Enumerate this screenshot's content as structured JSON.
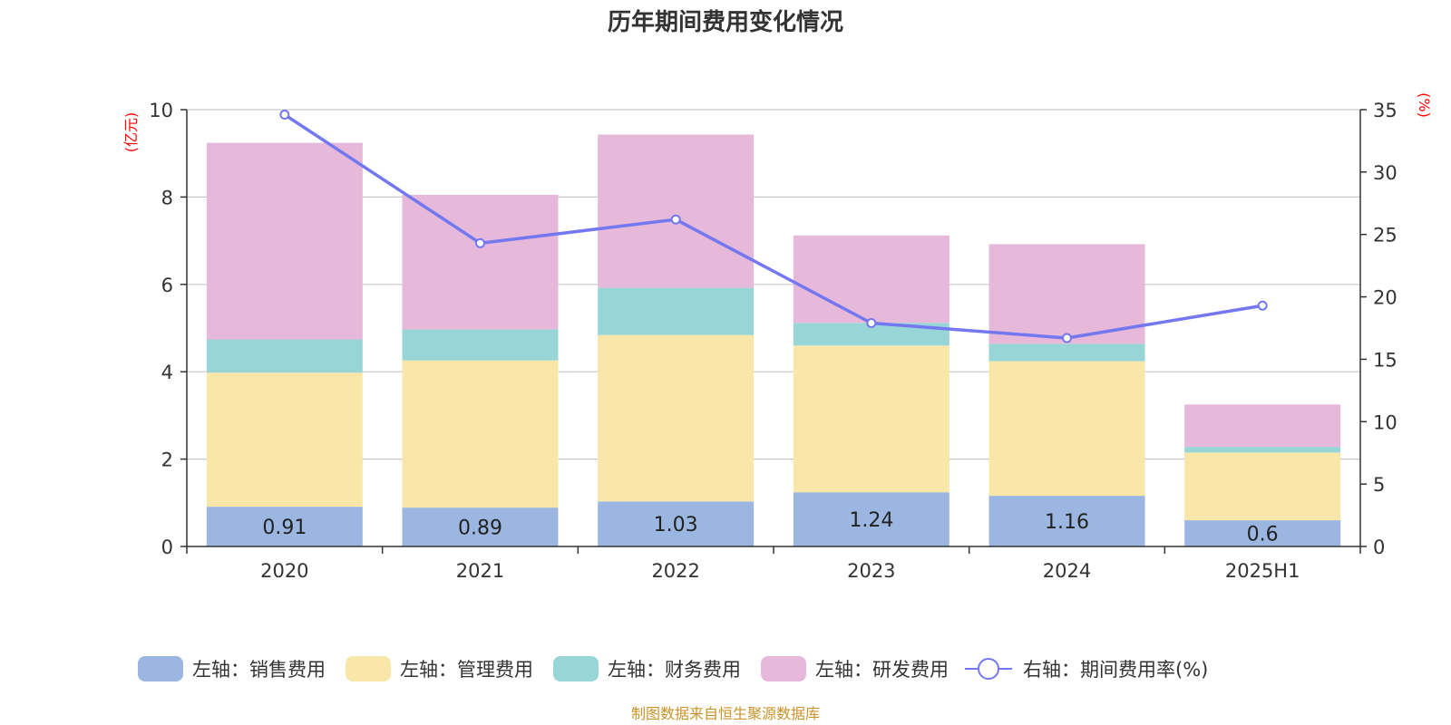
{
  "chart_data": {
    "type": "bar",
    "stacked": true,
    "title": "历年期间费用变化情况",
    "categories": [
      "2020",
      "2021",
      "2022",
      "2023",
      "2024",
      "2025H1"
    ],
    "left_axis": {
      "unit": "(亿元)",
      "ylim": [
        0,
        10
      ],
      "ticks": [
        "0",
        "2",
        "4",
        "6",
        "8",
        "10"
      ]
    },
    "right_axis": {
      "unit": "(%)",
      "ylim": [
        0,
        35
      ],
      "ticks": [
        "0",
        "5",
        "10",
        "15",
        "20",
        "25",
        "30",
        "35"
      ]
    },
    "grid": true,
    "series": [
      {
        "name": "左轴：销售费用",
        "kind": "bar",
        "axis": "left",
        "color": "#9bb6e0",
        "values": [
          0.91,
          0.89,
          1.03,
          1.24,
          1.16,
          0.6
        ],
        "labels": [
          "0.91",
          "0.89",
          "1.03",
          "1.24",
          "1.16",
          "0.6"
        ]
      },
      {
        "name": "左轴：管理费用",
        "kind": "bar",
        "axis": "left",
        "color": "#f8e7a8",
        "values": [
          3.07,
          3.37,
          3.81,
          3.36,
          3.08,
          1.55
        ]
      },
      {
        "name": "左轴：财务费用",
        "kind": "bar",
        "axis": "left",
        "color": "#98d5d6",
        "values": [
          0.76,
          0.71,
          1.08,
          0.52,
          0.4,
          0.13
        ]
      },
      {
        "name": "左轴：研发费用",
        "kind": "bar",
        "axis": "left",
        "color": "#e6b8d9",
        "values": [
          4.5,
          3.08,
          3.51,
          2.0,
          2.28,
          0.97
        ]
      },
      {
        "name": "右轴：期间费用率(%)",
        "kind": "line",
        "axis": "right",
        "color": "#7478f0",
        "values": [
          34.6,
          24.3,
          26.2,
          17.9,
          16.7,
          19.3
        ]
      }
    ],
    "legend_position": "bottom"
  },
  "source_note": "制图数据来自恒生聚源数据库"
}
